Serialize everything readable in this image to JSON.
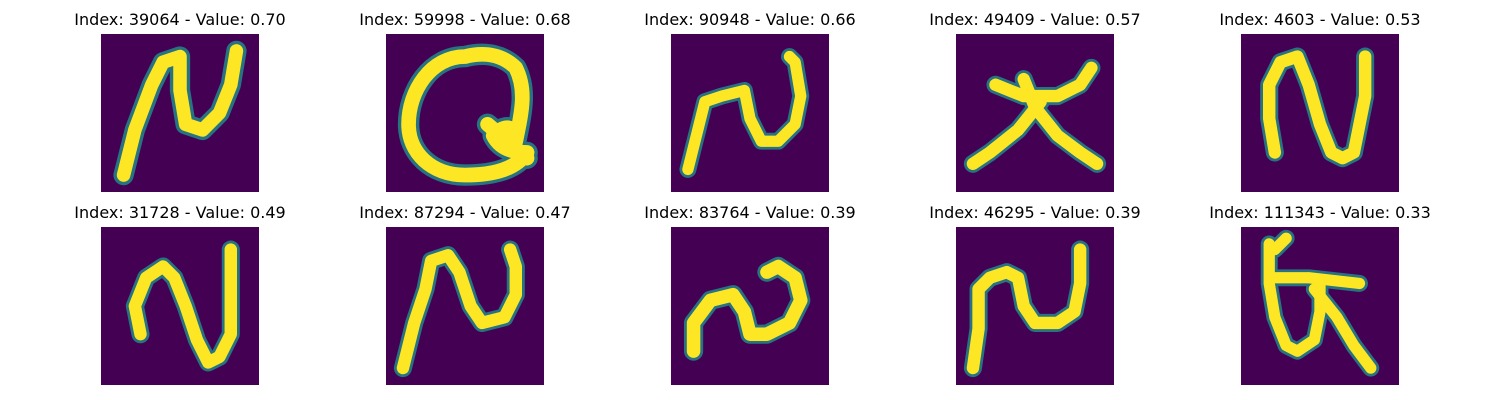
{
  "colors": {
    "background": "#440154",
    "glow": "#21908d",
    "mid": "#5ec962",
    "stroke": "#fde725"
  },
  "panels": [
    {
      "index": "39064",
      "value": "0.70",
      "title": "Index: 39064 - Value: 0.70",
      "glyph": "character-stroke-icon"
    },
    {
      "index": "59998",
      "value": "0.68",
      "title": "Index: 59998 - Value: 0.68",
      "glyph": "character-stroke-icon"
    },
    {
      "index": "90948",
      "value": "0.66",
      "title": "Index: 90948 - Value: 0.66",
      "glyph": "character-stroke-icon"
    },
    {
      "index": "49409",
      "value": "0.57",
      "title": "Index: 49409 - Value: 0.57",
      "glyph": "character-stroke-icon"
    },
    {
      "index": "4603",
      "value": "0.53",
      "title": "Index: 4603 - Value: 0.53",
      "glyph": "character-stroke-icon"
    },
    {
      "index": "31728",
      "value": "0.49",
      "title": "Index: 31728 - Value: 0.49",
      "glyph": "character-stroke-icon"
    },
    {
      "index": "87294",
      "value": "0.47",
      "title": "Index: 87294 - Value: 0.47",
      "glyph": "character-stroke-icon"
    },
    {
      "index": "83764",
      "value": "0.39",
      "title": "Index: 83764 - Value: 0.39",
      "glyph": "character-stroke-icon"
    },
    {
      "index": "46295",
      "value": "0.39",
      "title": "Index: 46295 - Value: 0.39",
      "glyph": "character-stroke-icon"
    },
    {
      "index": "111343",
      "value": "0.33",
      "title": "Index: 111343 - Value: 0.33",
      "glyph": "character-stroke-icon"
    }
  ]
}
